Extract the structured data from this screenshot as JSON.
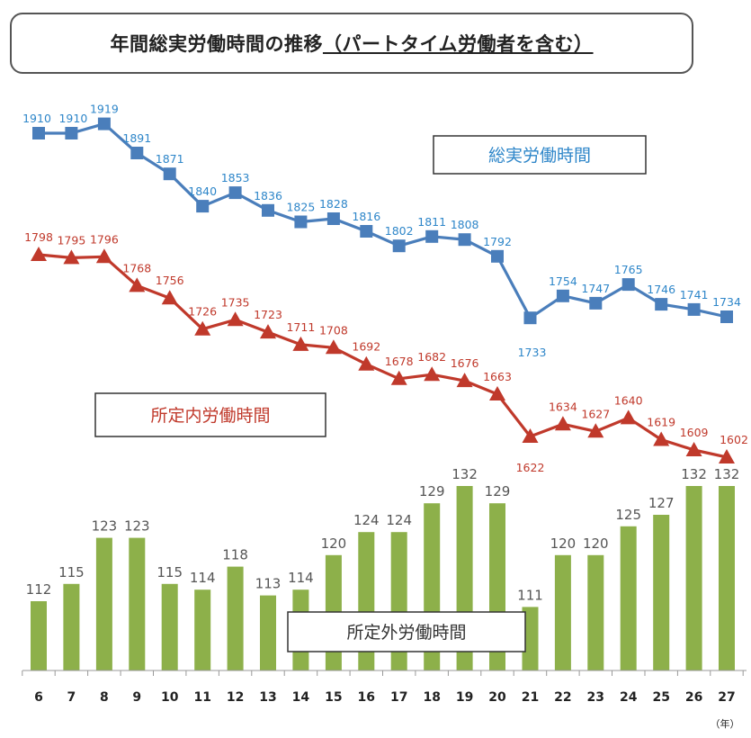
{
  "title": {
    "main": "年間総実労働時間の推移",
    "paren": "（パートタイム労働者を含む）"
  },
  "chart_data": {
    "type": "line+bar",
    "x_unit_label": "（年）",
    "categories": [
      "6",
      "7",
      "8",
      "9",
      "10",
      "11",
      "12",
      "13",
      "14",
      "15",
      "16",
      "17",
      "18",
      "19",
      "20",
      "21",
      "22",
      "23",
      "24",
      "25",
      "26",
      "27"
    ],
    "series": [
      {
        "name": "総実労働時間",
        "kind": "line",
        "marker": "square",
        "color": "#4a7ebb",
        "label_color": "#2e86c9",
        "values": [
          1910,
          1910,
          1919,
          1891,
          1871,
          1840,
          1853,
          1836,
          1825,
          1828,
          1816,
          1802,
          1811,
          1808,
          1792,
          1733,
          1754,
          1747,
          1765,
          1746,
          1741,
          1734
        ]
      },
      {
        "name": "所定内労働時間",
        "kind": "line",
        "marker": "triangle",
        "color": "#c0392b",
        "label_color": "#c0392b",
        "values": [
          1798,
          1795,
          1796,
          1768,
          1756,
          1726,
          1735,
          1723,
          1711,
          1708,
          1692,
          1678,
          1682,
          1676,
          1663,
          1622,
          1634,
          1627,
          1640,
          1619,
          1609,
          1602
        ]
      },
      {
        "name": "所定外労働時間",
        "kind": "bar",
        "color": "#8db04a",
        "label_color": "#555555",
        "values": [
          112,
          115,
          123,
          123,
          115,
          114,
          118,
          113,
          114,
          120,
          124,
          124,
          129,
          132,
          129,
          111,
          120,
          120,
          125,
          127,
          132,
          132
        ]
      }
    ],
    "legend_boxes": [
      "総実労働時間",
      "所定内労働時間",
      "所定外労働時間"
    ]
  }
}
